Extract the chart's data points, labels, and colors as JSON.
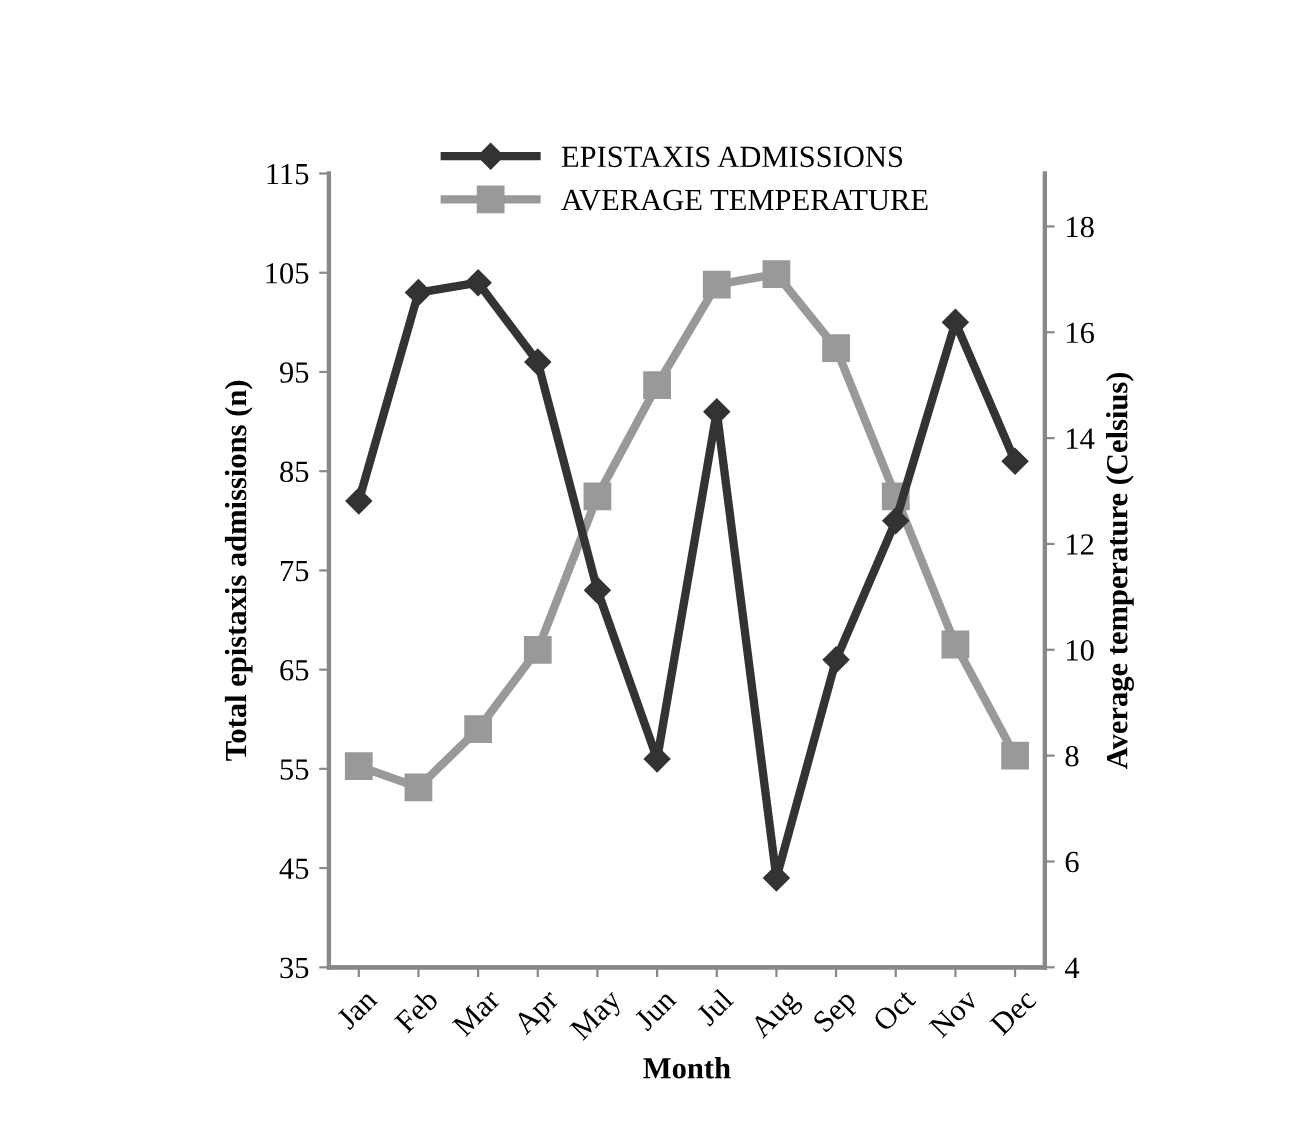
{
  "chart_data": {
    "type": "line",
    "xlabel": "Month",
    "ylabel": "Total epistaxis admissions (n)",
    "y2label": "Average temperature (Celsius)",
    "categories": [
      "Jan",
      "Feb",
      "Mar",
      "Apr",
      "May",
      "Jun",
      "Jul",
      "Aug",
      "Sep",
      "Oct",
      "Nov",
      "Dec"
    ],
    "series": [
      {
        "name": "EPISTAXIS ADMISSIONS",
        "color": "#333333",
        "marker": "diamond",
        "values": [
          82,
          103,
          104,
          96,
          73,
          56,
          91,
          44,
          66,
          80,
          100,
          86
        ]
      },
      {
        "name": "AVERAGE TEMPERATURE",
        "color": "#999999",
        "marker": "square",
        "axis": "y2",
        "values": [
          7.8,
          7.4,
          8.5,
          10.0,
          12.9,
          15.0,
          16.9,
          17.1,
          15.7,
          12.9,
          10.1,
          8.0
        ]
      }
    ],
    "ylim": [
      35,
      115
    ],
    "yticks": [
      35,
      45,
      55,
      65,
      75,
      85,
      95,
      105,
      115
    ],
    "y2lim": [
      4,
      19
    ],
    "y2ticks": [
      4,
      6,
      8,
      10,
      12,
      14,
      16,
      18
    ],
    "legend": "top",
    "line_style": "solid"
  }
}
